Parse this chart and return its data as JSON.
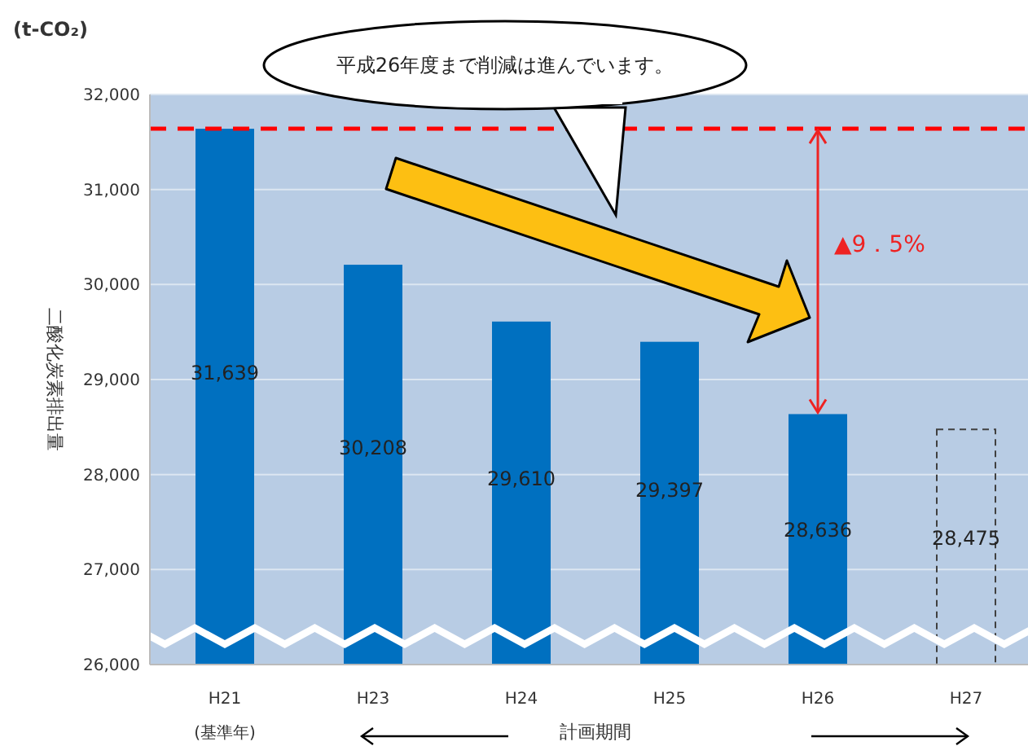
{
  "chart_data": {
    "type": "bar",
    "ylabel": "二酸化炭素排出量",
    "categories": [
      "H21",
      "H23",
      "H24",
      "H25",
      "H26",
      "H27"
    ],
    "series": [
      {
        "color": "#0070c0",
        "values": [
          31639,
          30208,
          29610,
          29397,
          28636,
          null
        ],
        "value_labels": [
          "31,639",
          "30,208",
          "29,610",
          "29,397",
          "28,636",
          null
        ]
      },
      {
        "color": "#404040",
        "line_style": "dashed",
        "values": [
          null,
          null,
          null,
          null,
          null,
          28475
        ],
        "value_labels": [
          null,
          null,
          null,
          null,
          null,
          "28,475"
        ]
      }
    ],
    "ylim": [
      26000,
      32000
    ],
    "yticks": [
      {
        "value": 26000,
        "label": "26,000"
      },
      {
        "value": 27000,
        "label": "27,000"
      },
      {
        "value": 28000,
        "label": "28,000"
      },
      {
        "value": 29000,
        "label": "29,000"
      },
      {
        "value": 30000,
        "label": "30,000"
      },
      {
        "value": 31000,
        "label": "31,000"
      },
      {
        "value": 32000,
        "label": "32,000"
      }
    ],
    "grid": "y",
    "ref_lines": [
      {
        "axis": "y",
        "value": 31639,
        "color": "#ff0000",
        "line_style": "dashed"
      }
    ],
    "annotations": [
      "(t-CO₂)",
      "平成26年度まで削減は進んでいます。",
      "▲9．5%",
      "(基準年)",
      "計画期間"
    ]
  }
}
